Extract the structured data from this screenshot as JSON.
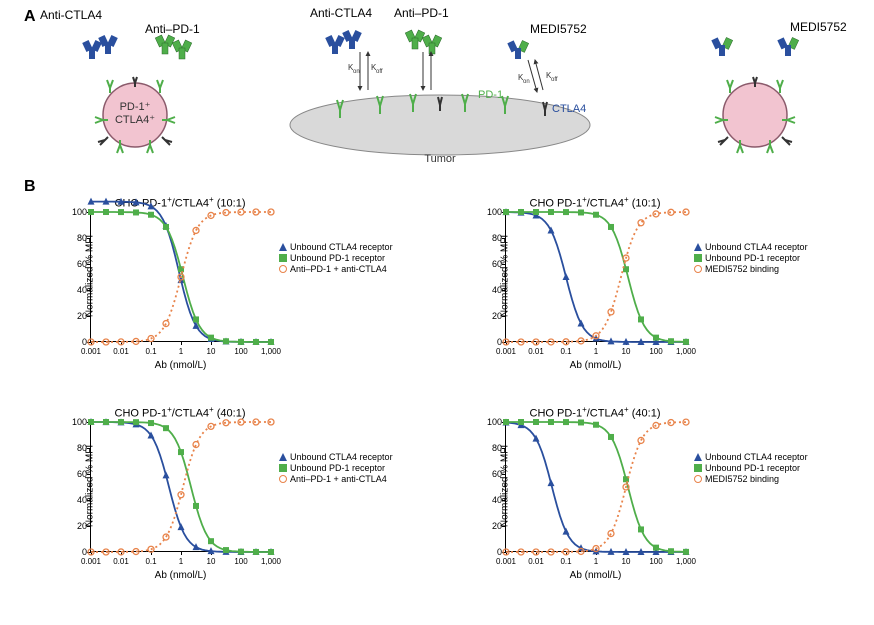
{
  "panelA": {
    "label": "A"
  },
  "panelB": {
    "label": "B"
  },
  "diagram": {
    "anti_ctla4_left": "Anti-CTLA4",
    "anti_pd1_left": "Anti–PD-1",
    "anti_ctla4_mid": "Anti-CTLA4",
    "anti_pd1_mid": "Anti–PD-1",
    "medi_mid": "MEDI5752",
    "pd1_label": "PD-1",
    "ctla4_label": "CTLA4",
    "kon": "K",
    "kon_sub": "on",
    "koff": "K",
    "koff_sub": "off",
    "tumor": "Tumor",
    "cell_line1": "PD-1",
    "cell_line2": "CTLA4",
    "medi_right": "MEDI5752"
  },
  "colors": {
    "blue": "#2a4f9e",
    "green": "#4fae4a",
    "orange": "#e8834a",
    "dark": "#333333"
  },
  "axis": {
    "y_label": "Normalized % MFI",
    "x_label": "Ab (nmol/L)",
    "y_ticks": [
      0,
      20,
      40,
      60,
      80,
      100
    ],
    "x_ticks_labels": [
      "0.001",
      "0.01",
      "0.1",
      "1",
      "10",
      "100",
      "1,000"
    ],
    "x_ticks_pos": [
      0,
      30,
      60,
      90,
      120,
      150,
      180
    ]
  },
  "legend_combo": {
    "s1": "Unbound CTLA4 receptor",
    "s2": "Unbound PD-1 receptor",
    "s3": "Anti–PD-1 + anti-CTLA4"
  },
  "legend_medi": {
    "s1": "Unbound CTLA4 receptor",
    "s2": "Unbound PD-1 receptor",
    "s3": "MEDI5752 binding"
  },
  "charts": {
    "tl": {
      "title_prefix": "CHO PD-1",
      "title_suffix": "/CTLA4",
      "ratio": " (10:1)",
      "blue_mid": 88,
      "green_mid": 92,
      "orange_mid": 90,
      "blue_y0": 108,
      "green_y0": 100
    },
    "tr": {
      "title_prefix": "CHO PD-1",
      "title_suffix": "/CTLA4",
      "ratio": " (10:1)",
      "blue_mid": 60,
      "green_mid": 122,
      "orange_mid": 115,
      "blue_y0": 100,
      "green_y0": 100
    },
    "bl": {
      "title_prefix": "CHO PD-1",
      "title_suffix": "/CTLA4",
      "ratio": " (40:1)",
      "blue_mid": 78,
      "green_mid": 100,
      "orange_mid": 92,
      "blue_y0": 100,
      "green_y0": 100
    },
    "br": {
      "title_prefix": "CHO PD-1",
      "title_suffix": "/CTLA4",
      "ratio": " (40:1)",
      "blue_mid": 46,
      "green_mid": 122,
      "orange_mid": 120,
      "blue_y0": 100,
      "green_y0": 100
    }
  }
}
